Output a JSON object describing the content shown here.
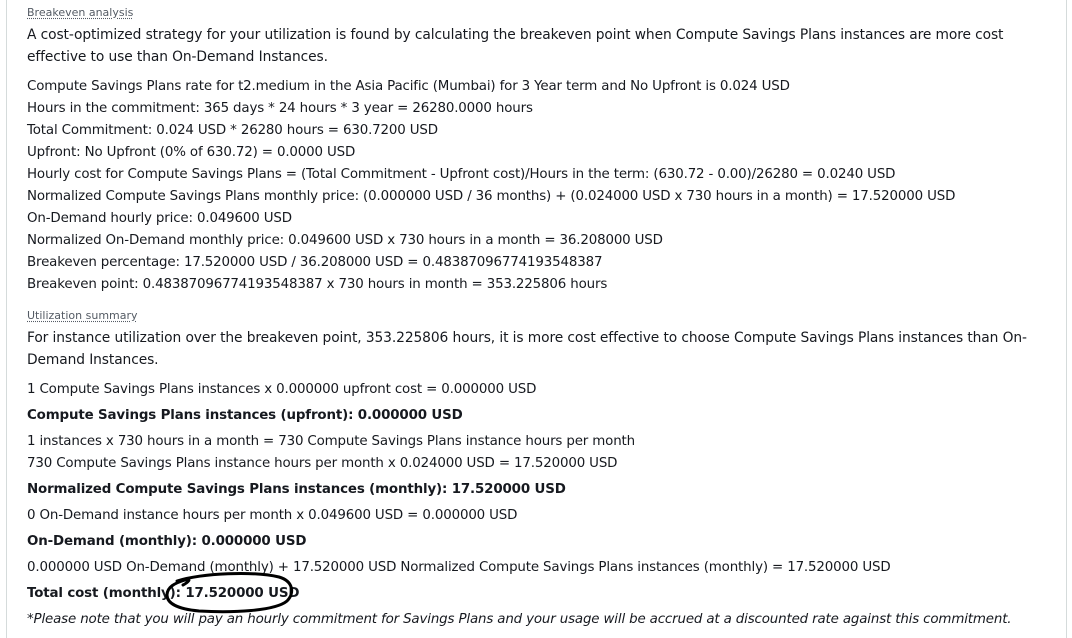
{
  "breakeven": {
    "heading": "Breakeven analysis",
    "intro": "A cost-optimized strategy for your utilization is found by calculating the breakeven point when Compute Savings Plans instances are more cost effective to use than On-Demand Instances.",
    "lines": [
      "Compute Savings Plans rate for t2.medium in the Asia Pacific (Mumbai) for 3 Year term and No Upfront is 0.024 USD",
      "Hours in the commitment: 365 days * 24 hours * 3 year = 26280.0000 hours",
      "Total Commitment: 0.024 USD * 26280 hours = 630.7200 USD",
      "Upfront: No Upfront (0% of 630.72) = 0.0000 USD",
      "Hourly cost for Compute Savings Plans = (Total Commitment - Upfront cost)/Hours in the term: (630.72 - 0.00)/26280 = 0.0240 USD",
      "Normalized Compute Savings Plans monthly price: (0.000000 USD / 36 months) + (0.024000 USD x 730 hours in a month) = 17.520000 USD",
      "On-Demand hourly price: 0.049600 USD",
      "Normalized On-Demand monthly price: 0.049600 USD x 730 hours in a month = 36.208000 USD",
      "Breakeven percentage: 17.520000 USD / 36.208000 USD = 0.48387096774193548387",
      "Breakeven point: 0.48387096774193548387 x 730 hours in month = 353.225806 hours"
    ]
  },
  "utilization": {
    "heading": "Utilization summary",
    "intro": "For instance utilization over the breakeven point, 353.225806 hours, it is more cost effective to choose Compute Savings Plans instances than On-Demand Instances.",
    "upfront_calc": "1 Compute Savings Plans instances x 0.000000 upfront cost = 0.000000 USD",
    "upfront_total": "Compute Savings Plans instances (upfront): 0.000000 USD",
    "hours_calc": "1 instances x 730 hours in a month = 730 Compute Savings Plans instance hours per month",
    "monthly_calc": "730 Compute Savings Plans instance hours per month x 0.024000 USD = 17.520000 USD",
    "monthly_total": "Normalized Compute Savings Plans instances (monthly): 17.520000 USD",
    "ondemand_calc": "0 On-Demand instance hours per month x 0.049600 USD = 0.000000 USD",
    "ondemand_total": "On-Demand (monthly): 0.000000 USD",
    "sum_calc": "0.000000 USD On-Demand (monthly) + 17.520000 USD Normalized Compute Savings Plans instances (monthly) = 17.520000 USD",
    "total_label": "Total cost (monthly):",
    "total_value": "17.520000 USD",
    "note": "*Please note that you will pay an hourly commitment for Savings Plans and your usage will be accrued at a discounted rate against this commitment."
  },
  "annotation": {
    "ink_color": "#000000"
  }
}
